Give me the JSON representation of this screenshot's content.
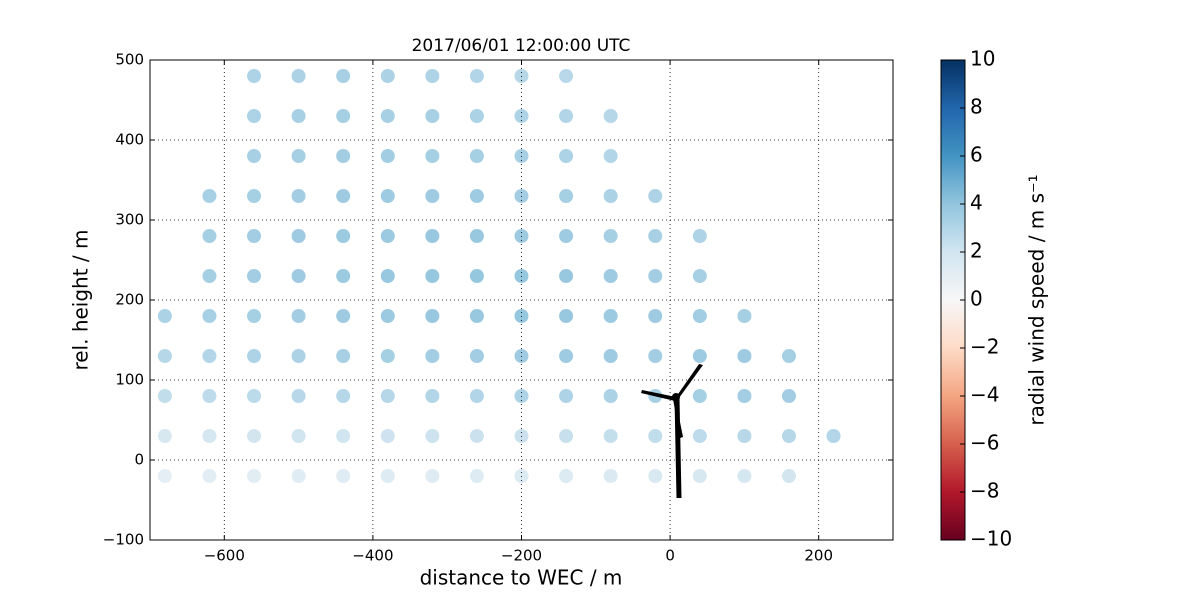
{
  "chart_data": {
    "type": "scatter",
    "title": "2017/06/01 12:00:00 UTC",
    "x_label": "distance to WEC / m",
    "y_label": "rel. height / m",
    "colorbar_label": "radial wind speed / m s⁻¹",
    "xlim": [
      -700,
      300
    ],
    "ylim": [
      -100,
      500
    ],
    "xticks": [
      {
        "value": -600,
        "label": "−600"
      },
      {
        "value": -400,
        "label": "−400"
      },
      {
        "value": -200,
        "label": "−200"
      },
      0,
      200
    ],
    "yticks": [
      {
        "value": -100,
        "label": "−100"
      },
      0,
      100,
      200,
      300,
      400,
      500
    ],
    "clim": [
      -10,
      10
    ],
    "cticks": [
      {
        "value": -10,
        "label": "−10"
      },
      {
        "value": -8,
        "label": "−8"
      },
      {
        "value": -6,
        "label": "−6"
      },
      {
        "value": -4,
        "label": "−4"
      },
      {
        "value": -2,
        "label": "−2"
      },
      0,
      2,
      4,
      6,
      8,
      10
    ],
    "colormap": [
      "#67001f",
      "#b2182b",
      "#d6604d",
      "#f4a582",
      "#fddbc7",
      "#f7f7f7",
      "#d1e5f0",
      "#92c5de",
      "#4393c3",
      "#2166ac",
      "#053061"
    ],
    "grid": true,
    "x": [
      -680,
      -680,
      -680,
      -680,
      -680,
      -620,
      -620,
      -620,
      -620,
      -620,
      -620,
      -620,
      -620,
      -560,
      -560,
      -560,
      -560,
      -560,
      -560,
      -560,
      -560,
      -560,
      -560,
      -560,
      -500,
      -500,
      -500,
      -500,
      -500,
      -500,
      -500,
      -500,
      -500,
      -500,
      -500,
      -440,
      -440,
      -440,
      -440,
      -440,
      -440,
      -440,
      -440,
      -440,
      -440,
      -440,
      -380,
      -380,
      -380,
      -380,
      -380,
      -380,
      -380,
      -380,
      -380,
      -380,
      -380,
      -320,
      -320,
      -320,
      -320,
      -320,
      -320,
      -320,
      -320,
      -320,
      -320,
      -320,
      -260,
      -260,
      -260,
      -260,
      -260,
      -260,
      -260,
      -260,
      -260,
      -260,
      -260,
      -200,
      -200,
      -200,
      -200,
      -200,
      -200,
      -200,
      -200,
      -200,
      -200,
      -200,
      -140,
      -140,
      -140,
      -140,
      -140,
      -140,
      -140,
      -140,
      -140,
      -140,
      -140,
      -80,
      -80,
      -80,
      -80,
      -80,
      -80,
      -80,
      -80,
      -80,
      -80,
      -20,
      -20,
      -20,
      -20,
      -20,
      -20,
      -20,
      -20,
      40,
      40,
      40,
      40,
      40,
      40,
      40,
      100,
      100,
      100,
      100,
      100,
      160,
      160,
      160,
      160,
      220
    ],
    "y": [
      -20,
      30,
      80,
      130,
      180,
      -20,
      30,
      80,
      130,
      180,
      230,
      280,
      330,
      -20,
      30,
      80,
      130,
      180,
      230,
      280,
      330,
      380,
      430,
      480,
      -20,
      30,
      80,
      130,
      180,
      230,
      280,
      330,
      380,
      430,
      480,
      -20,
      30,
      80,
      130,
      180,
      230,
      280,
      330,
      380,
      430,
      480,
      -20,
      30,
      80,
      130,
      180,
      230,
      280,
      330,
      380,
      430,
      480,
      -20,
      30,
      80,
      130,
      180,
      230,
      280,
      330,
      380,
      430,
      480,
      -20,
      30,
      80,
      130,
      180,
      230,
      280,
      330,
      380,
      430,
      480,
      -20,
      30,
      80,
      130,
      180,
      230,
      280,
      330,
      380,
      430,
      480,
      -20,
      30,
      80,
      130,
      180,
      230,
      280,
      330,
      380,
      430,
      480,
      -20,
      30,
      80,
      130,
      180,
      230,
      280,
      330,
      380,
      430,
      -20,
      30,
      80,
      130,
      180,
      230,
      280,
      330,
      -20,
      30,
      80,
      130,
      180,
      230,
      280,
      -20,
      30,
      80,
      130,
      180,
      -20,
      30,
      80,
      130,
      30
    ],
    "c": [
      1.0,
      1.7,
      2.5,
      2.9,
      3.2,
      1.1,
      1.8,
      2.6,
      3.0,
      3.3,
      3.4,
      3.4,
      3.3,
      1.1,
      1.9,
      2.7,
      3.1,
      3.4,
      3.5,
      3.5,
      3.4,
      3.3,
      3.2,
      3.1,
      1.2,
      2.0,
      2.8,
      3.2,
      3.5,
      3.6,
      3.6,
      3.5,
      3.4,
      3.3,
      3.2,
      1.2,
      2.0,
      2.9,
      3.3,
      3.6,
      3.7,
      3.7,
      3.6,
      3.5,
      3.4,
      3.3,
      1.3,
      2.1,
      2.9,
      3.4,
      3.7,
      3.8,
      3.7,
      3.6,
      3.5,
      3.3,
      3.2,
      1.3,
      2.1,
      3.0,
      3.5,
      3.8,
      3.9,
      3.8,
      3.6,
      3.4,
      3.3,
      3.1,
      1.3,
      2.2,
      3.0,
      3.5,
      3.8,
      3.9,
      3.8,
      3.6,
      3.4,
      3.2,
      3.0,
      1.4,
      2.2,
      3.1,
      3.6,
      3.9,
      3.9,
      3.7,
      3.5,
      3.3,
      3.1,
      2.9,
      1.4,
      2.3,
      3.1,
      3.6,
      3.8,
      3.8,
      3.6,
      3.4,
      3.2,
      3.0,
      2.8,
      1.5,
      2.4,
      3.2,
      3.6,
      3.7,
      3.6,
      3.4,
      3.2,
      3.0,
      2.9,
      1.6,
      2.5,
      3.3,
      3.5,
      3.6,
      3.5,
      3.3,
      3.1,
      1.7,
      2.6,
      3.4,
      3.6,
      3.5,
      3.3,
      3.1,
      1.8,
      2.8,
      3.5,
      3.6,
      3.4,
      1.9,
      2.9,
      3.5,
      3.4,
      3.0
    ]
  }
}
